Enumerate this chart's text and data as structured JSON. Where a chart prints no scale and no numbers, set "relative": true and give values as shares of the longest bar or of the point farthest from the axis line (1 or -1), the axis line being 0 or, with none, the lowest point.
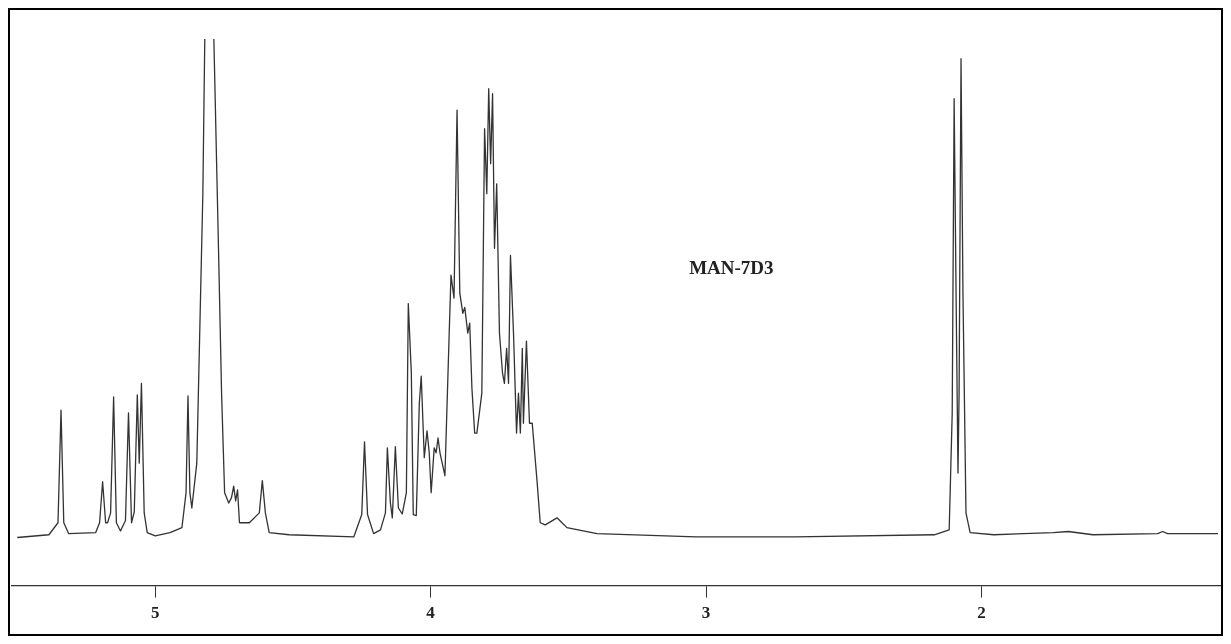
{
  "chart_data": {
    "type": "line",
    "relative": true,
    "color": "#333333",
    "grid": false,
    "legend": false,
    "marker": "none",
    "line_style": "solid",
    "xlim": [
      5.52,
      1.13
    ],
    "xticks": [
      5,
      4,
      3,
      2
    ],
    "annotations": [
      "MAN-7D3"
    ],
    "x": [
      5.501,
      5.386,
      5.353,
      5.342,
      5.332,
      5.314,
      5.216,
      5.202,
      5.191,
      5.18,
      5.173,
      5.162,
      5.151,
      5.141,
      5.126,
      5.108,
      5.097,
      5.086,
      5.076,
      5.065,
      5.058,
      5.05,
      5.04,
      5.029,
      5.0,
      4.946,
      4.903,
      4.888,
      4.881,
      4.874,
      4.867,
      4.849,
      4.827,
      4.82,
      4.8,
      4.787,
      4.777,
      4.769,
      4.759,
      4.748,
      4.733,
      4.723,
      4.715,
      4.708,
      4.701,
      4.694,
      4.658,
      4.622,
      4.611,
      4.6,
      4.586,
      4.514,
      4.279,
      4.25,
      4.24,
      4.229,
      4.207,
      4.182,
      4.164,
      4.157,
      4.146,
      4.139,
      4.128,
      4.117,
      4.103,
      4.088,
      4.081,
      4.07,
      4.063,
      4.052,
      4.041,
      4.034,
      4.023,
      4.013,
      4.005,
      3.998,
      3.987,
      3.98,
      3.973,
      3.966,
      3.948,
      3.933,
      3.926,
      3.915,
      3.904,
      3.894,
      3.883,
      3.876,
      3.865,
      3.858,
      3.85,
      3.84,
      3.832,
      3.814,
      3.804,
      3.796,
      3.789,
      3.782,
      3.775,
      3.768,
      3.76,
      3.75,
      3.739,
      3.732,
      3.724,
      3.717,
      3.71,
      3.699,
      3.688,
      3.681,
      3.674,
      3.667,
      3.663,
      3.652,
      3.641,
      3.631,
      3.613,
      3.602,
      3.584,
      3.541,
      3.523,
      3.505,
      3.396,
      3.036,
      2.676,
      2.171,
      2.117,
      2.106,
      2.099,
      2.092,
      2.085,
      2.081,
      2.074,
      2.067,
      2.056,
      2.041,
      1.955,
      1.739,
      1.685,
      1.595,
      1.36,
      1.342,
      1.324,
      1.141
    ],
    "values": [
      0.088,
      0.093,
      0.115,
      0.321,
      0.115,
      0.095,
      0.097,
      0.115,
      0.19,
      0.115,
      0.115,
      0.133,
      0.345,
      0.115,
      0.1,
      0.119,
      0.316,
      0.115,
      0.135,
      0.349,
      0.224,
      0.37,
      0.133,
      0.097,
      0.091,
      0.097,
      0.106,
      0.17,
      0.347,
      0.17,
      0.142,
      0.224,
      0.717,
      1,
      null,
      1,
      0.772,
      0.589,
      0.352,
      0.17,
      0.151,
      0.161,
      0.182,
      0.155,
      0.175,
      0.115,
      0.115,
      0.133,
      0.192,
      0.133,
      0.097,
      0.093,
      0.089,
      0.13,
      0.263,
      0.13,
      0.095,
      0.102,
      0.133,
      0.252,
      0.151,
      0.124,
      0.254,
      0.142,
      0.131,
      0.17,
      0.516,
      0.389,
      0.13,
      0.128,
      0.334,
      0.383,
      0.234,
      0.283,
      0.243,
      0.17,
      0.252,
      0.243,
      0.27,
      0.243,
      0.201,
      0.453,
      0.568,
      0.526,
      0.87,
      0.535,
      0.498,
      0.509,
      0.462,
      0.48,
      0.361,
      0.279,
      0.279,
      0.352,
      0.836,
      0.717,
      0.909,
      0.772,
      0.9,
      0.617,
      0.735,
      0.462,
      0.389,
      0.37,
      0.434,
      0.37,
      0.604,
      0.462,
      0.279,
      0.352,
      0.279,
      0.434,
      0.297,
      0.447,
      0.297,
      0.297,
      0.188,
      0.115,
      0.111,
      0.124,
      0.115,
      0.106,
      0.095,
      0.089,
      0.089,
      0.093,
      0.102,
      0.316,
      0.891,
      0.535,
      0.206,
      0.352,
      0.964,
      0.535,
      0.133,
      0.097,
      0.093,
      0.097,
      0.099,
      0.093,
      0.095,
      0.099,
      0.095,
      0.095
    ]
  }
}
